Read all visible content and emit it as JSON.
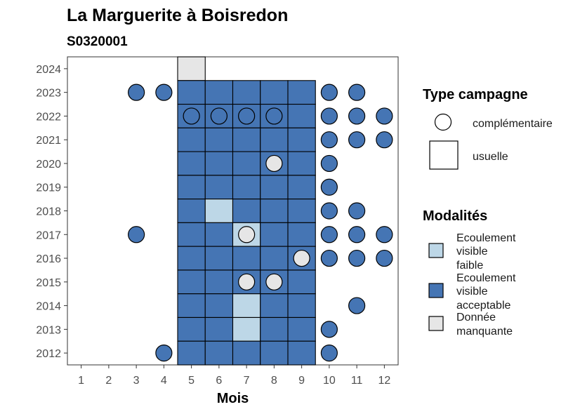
{
  "chart_data": {
    "type": "heatmap",
    "title": "La Marguerite à Boisredon",
    "subtitle": "S0320001",
    "xlabel": "Mois",
    "ylabel": "",
    "x_ticks": [
      1,
      2,
      3,
      4,
      5,
      6,
      7,
      8,
      9,
      10,
      11,
      12
    ],
    "y_ticks": [
      2012,
      2013,
      2014,
      2015,
      2016,
      2017,
      2018,
      2019,
      2020,
      2021,
      2022,
      2023,
      2024
    ],
    "xlim": [
      0.5,
      12.5
    ],
    "ylim": [
      2011.5,
      2024.5
    ],
    "colors": {
      "faible": "#bdd7e7",
      "acceptable": "#4575b4",
      "manquante": "#e6e6e6"
    },
    "legend_type": {
      "title": "Type campagne",
      "items": [
        {
          "key": "complementaire",
          "label": "complémentaire",
          "shape": "circle"
        },
        {
          "key": "usuelle",
          "label": "usuelle",
          "shape": "square"
        }
      ]
    },
    "legend_modalites": {
      "title": "Modalités",
      "items": [
        {
          "key": "faible",
          "lines": [
            "Ecoulement",
            "visible",
            "faible"
          ]
        },
        {
          "key": "acceptable",
          "lines": [
            "Ecoulement",
            "visible",
            "acceptable"
          ]
        },
        {
          "key": "manquante",
          "lines": [
            "Donnée",
            "manquante"
          ]
        }
      ]
    },
    "usuelle": [
      {
        "year": 2024,
        "month": 5,
        "modalite": "manquante"
      },
      {
        "year": 2023,
        "month": 5,
        "modalite": "acceptable"
      },
      {
        "year": 2023,
        "month": 6,
        "modalite": "acceptable"
      },
      {
        "year": 2023,
        "month": 7,
        "modalite": "acceptable"
      },
      {
        "year": 2023,
        "month": 8,
        "modalite": "acceptable"
      },
      {
        "year": 2023,
        "month": 9,
        "modalite": "acceptable"
      },
      {
        "year": 2022,
        "month": 5,
        "modalite": "acceptable"
      },
      {
        "year": 2022,
        "month": 6,
        "modalite": "acceptable"
      },
      {
        "year": 2022,
        "month": 7,
        "modalite": "acceptable"
      },
      {
        "year": 2022,
        "month": 8,
        "modalite": "acceptable"
      },
      {
        "year": 2022,
        "month": 9,
        "modalite": "acceptable"
      },
      {
        "year": 2021,
        "month": 5,
        "modalite": "acceptable"
      },
      {
        "year": 2021,
        "month": 6,
        "modalite": "acceptable"
      },
      {
        "year": 2021,
        "month": 7,
        "modalite": "acceptable"
      },
      {
        "year": 2021,
        "month": 8,
        "modalite": "acceptable"
      },
      {
        "year": 2021,
        "month": 9,
        "modalite": "acceptable"
      },
      {
        "year": 2020,
        "month": 5,
        "modalite": "acceptable"
      },
      {
        "year": 2020,
        "month": 6,
        "modalite": "acceptable"
      },
      {
        "year": 2020,
        "month": 7,
        "modalite": "acceptable"
      },
      {
        "year": 2020,
        "month": 8,
        "modalite": "acceptable"
      },
      {
        "year": 2020,
        "month": 9,
        "modalite": "acceptable"
      },
      {
        "year": 2019,
        "month": 5,
        "modalite": "acceptable"
      },
      {
        "year": 2019,
        "month": 6,
        "modalite": "acceptable"
      },
      {
        "year": 2019,
        "month": 7,
        "modalite": "acceptable"
      },
      {
        "year": 2019,
        "month": 8,
        "modalite": "acceptable"
      },
      {
        "year": 2019,
        "month": 9,
        "modalite": "acceptable"
      },
      {
        "year": 2018,
        "month": 5,
        "modalite": "acceptable"
      },
      {
        "year": 2018,
        "month": 6,
        "modalite": "faible"
      },
      {
        "year": 2018,
        "month": 7,
        "modalite": "acceptable"
      },
      {
        "year": 2018,
        "month": 8,
        "modalite": "acceptable"
      },
      {
        "year": 2018,
        "month": 9,
        "modalite": "acceptable"
      },
      {
        "year": 2017,
        "month": 5,
        "modalite": "acceptable"
      },
      {
        "year": 2017,
        "month": 6,
        "modalite": "acceptable"
      },
      {
        "year": 2017,
        "month": 7,
        "modalite": "faible"
      },
      {
        "year": 2017,
        "month": 8,
        "modalite": "acceptable"
      },
      {
        "year": 2017,
        "month": 9,
        "modalite": "acceptable"
      },
      {
        "year": 2016,
        "month": 5,
        "modalite": "acceptable"
      },
      {
        "year": 2016,
        "month": 6,
        "modalite": "acceptable"
      },
      {
        "year": 2016,
        "month": 7,
        "modalite": "acceptable"
      },
      {
        "year": 2016,
        "month": 8,
        "modalite": "acceptable"
      },
      {
        "year": 2016,
        "month": 9,
        "modalite": "acceptable"
      },
      {
        "year": 2015,
        "month": 5,
        "modalite": "acceptable"
      },
      {
        "year": 2015,
        "month": 6,
        "modalite": "acceptable"
      },
      {
        "year": 2015,
        "month": 7,
        "modalite": "acceptable"
      },
      {
        "year": 2015,
        "month": 8,
        "modalite": "acceptable"
      },
      {
        "year": 2015,
        "month": 9,
        "modalite": "acceptable"
      },
      {
        "year": 2014,
        "month": 5,
        "modalite": "acceptable"
      },
      {
        "year": 2014,
        "month": 6,
        "modalite": "acceptable"
      },
      {
        "year": 2014,
        "month": 7,
        "modalite": "faible"
      },
      {
        "year": 2014,
        "month": 8,
        "modalite": "acceptable"
      },
      {
        "year": 2014,
        "month": 9,
        "modalite": "acceptable"
      },
      {
        "year": 2013,
        "month": 5,
        "modalite": "acceptable"
      },
      {
        "year": 2013,
        "month": 6,
        "modalite": "acceptable"
      },
      {
        "year": 2013,
        "month": 7,
        "modalite": "faible"
      },
      {
        "year": 2013,
        "month": 8,
        "modalite": "acceptable"
      },
      {
        "year": 2013,
        "month": 9,
        "modalite": "acceptable"
      },
      {
        "year": 2012,
        "month": 5,
        "modalite": "acceptable"
      },
      {
        "year": 2012,
        "month": 6,
        "modalite": "acceptable"
      },
      {
        "year": 2012,
        "month": 7,
        "modalite": "acceptable"
      },
      {
        "year": 2012,
        "month": 8,
        "modalite": "acceptable"
      },
      {
        "year": 2012,
        "month": 9,
        "modalite": "acceptable"
      }
    ],
    "complementaire": [
      {
        "year": 2023,
        "month": 3,
        "modalite": "acceptable"
      },
      {
        "year": 2023,
        "month": 4,
        "modalite": "acceptable"
      },
      {
        "year": 2023,
        "month": 10,
        "modalite": "acceptable"
      },
      {
        "year": 2023,
        "month": 11,
        "modalite": "acceptable"
      },
      {
        "year": 2022,
        "month": 5,
        "modalite": "acceptable"
      },
      {
        "year": 2022,
        "month": 6,
        "modalite": "acceptable"
      },
      {
        "year": 2022,
        "month": 7,
        "modalite": "acceptable"
      },
      {
        "year": 2022,
        "month": 8,
        "modalite": "acceptable"
      },
      {
        "year": 2022,
        "month": 10,
        "modalite": "acceptable"
      },
      {
        "year": 2022,
        "month": 11,
        "modalite": "acceptable"
      },
      {
        "year": 2022,
        "month": 12,
        "modalite": "acceptable"
      },
      {
        "year": 2021,
        "month": 10,
        "modalite": "acceptable"
      },
      {
        "year": 2021,
        "month": 11,
        "modalite": "acceptable"
      },
      {
        "year": 2021,
        "month": 12,
        "modalite": "acceptable"
      },
      {
        "year": 2020,
        "month": 8,
        "modalite": "manquante"
      },
      {
        "year": 2020,
        "month": 10,
        "modalite": "acceptable"
      },
      {
        "year": 2019,
        "month": 10,
        "modalite": "acceptable"
      },
      {
        "year": 2018,
        "month": 10,
        "modalite": "acceptable"
      },
      {
        "year": 2018,
        "month": 11,
        "modalite": "acceptable"
      },
      {
        "year": 2017,
        "month": 3,
        "modalite": "acceptable"
      },
      {
        "year": 2017,
        "month": 7,
        "modalite": "manquante"
      },
      {
        "year": 2017,
        "month": 10,
        "modalite": "acceptable"
      },
      {
        "year": 2017,
        "month": 11,
        "modalite": "acceptable"
      },
      {
        "year": 2017,
        "month": 12,
        "modalite": "acceptable"
      },
      {
        "year": 2016,
        "month": 9,
        "modalite": "manquante"
      },
      {
        "year": 2016,
        "month": 10,
        "modalite": "acceptable"
      },
      {
        "year": 2016,
        "month": 11,
        "modalite": "acceptable"
      },
      {
        "year": 2016,
        "month": 12,
        "modalite": "acceptable"
      },
      {
        "year": 2015,
        "month": 7,
        "modalite": "manquante"
      },
      {
        "year": 2015,
        "month": 8,
        "modalite": "manquante"
      },
      {
        "year": 2014,
        "month": 11,
        "modalite": "acceptable"
      },
      {
        "year": 2013,
        "month": 10,
        "modalite": "acceptable"
      },
      {
        "year": 2012,
        "month": 4,
        "modalite": "acceptable"
      },
      {
        "year": 2012,
        "month": 10,
        "modalite": "acceptable"
      }
    ]
  }
}
